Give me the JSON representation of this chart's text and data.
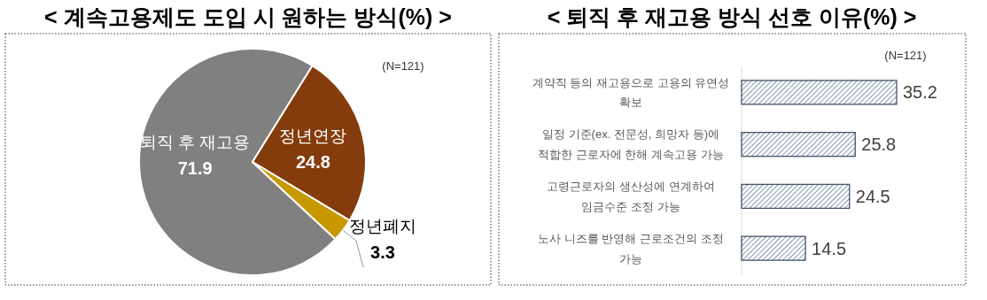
{
  "chart_data": [
    {
      "type": "pie",
      "title": "< 계속고용제도 도입 시 원하는 방식(%) >",
      "categories": [
        "퇴직 후 재고용",
        "정년연장",
        "정년폐지"
      ],
      "values": [
        71.9,
        24.8,
        3.3
      ],
      "colors": [
        "#808080",
        "#843c0c",
        "#c89800"
      ],
      "data_labels": true,
      "annotations": [
        "(N=121)"
      ]
    },
    {
      "type": "bar",
      "orientation": "horizontal",
      "title": "< 퇴직 후 재고용 방식 선호 이유(%) >",
      "categories": [
        "계약직 등의 재고용으로 고용의 유연성 확보",
        "일정 기준(ex. 전문성, 희망자 등)에 적합한 근로자에 한해 계속고용 가능",
        "고령근로자의 생산성에 연계하여 임금수준 조정 가능",
        "노사 니즈를 반영해 근로조건의 조정 가능"
      ],
      "values": [
        35.2,
        25.8,
        24.5,
        14.5
      ],
      "color": "#44546a",
      "data_labels": true,
      "annotations": [
        "(N=121)"
      ]
    }
  ]
}
